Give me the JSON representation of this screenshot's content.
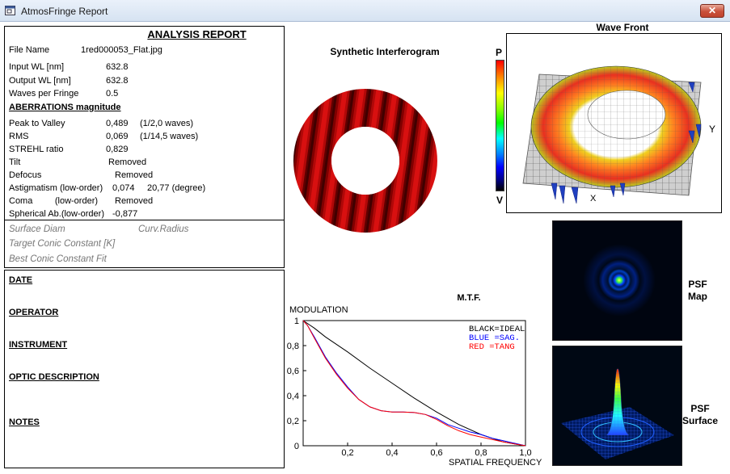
{
  "window": {
    "title": "AtmosFringe  Report",
    "close_glyph": "✕"
  },
  "report": {
    "heading": "ANALYSIS  REPORT",
    "file_name_label": "File Name",
    "file_name": "1red000053_Flat.jpg",
    "input_wl_label": "Input  WL [nm]",
    "input_wl": "632.8",
    "output_wl_label": "Output WL [nm]",
    "output_wl": "632.8",
    "waves_label": "Waves per Fringe",
    "waves": "0.5",
    "aberrations_heading": "ABERRATIONS magnitude",
    "ptv_label": "Peak to Valley",
    "ptv": "0,489",
    "ptv_waves": "(1/2,0 waves)",
    "rms_label": "RMS",
    "rms": "0,069",
    "rms_waves": "(1/14,5 waves)",
    "strehl_label": "STREHL ratio",
    "strehl": "0,829",
    "tilt_label": "Tilt",
    "tilt": "Removed",
    "defocus_label": "Defocus",
    "defocus": "Removed",
    "astig_label": "Astigmatism  (low-order)",
    "astig": "0,074",
    "astig_deg": "20,77  (degree)",
    "coma_label": "Coma         (low-order)",
    "coma": "Removed",
    "spherical_label": "Spherical Ab.(low-order)",
    "spherical": "-0,877",
    "surface_diam_label": "Surface Diam",
    "curv_radius_label": "Curv.Radius",
    "target_conic_label": "Target Conic Constant [K]",
    "best_conic_label": "Best Conic Constant Fit"
  },
  "info": {
    "date": "DATE",
    "operator": "OPERATOR",
    "instrument": "INSTRUMENT",
    "optic_description": "OPTIC DESCRIPTION",
    "notes": "NOTES"
  },
  "interferogram": {
    "title": "Synthetic Interferogram"
  },
  "scale": {
    "top": "P",
    "bottom": "V"
  },
  "wavefront": {
    "title": "Wave Front",
    "y_axis": "Y",
    "x_axis": "X"
  },
  "psf": {
    "map_label_1": "PSF",
    "map_label_2": "Map",
    "surface_label_1": "PSF",
    "surface_label_2": "Surface"
  },
  "chart_data": {
    "type": "line",
    "title": "M.T.F.",
    "ylabel": "MODULATION",
    "xlabel": "SPATIAL FREQUENCY",
    "xlim": [
      0,
      1
    ],
    "ylim": [
      0,
      1
    ],
    "x_ticks": [
      "0,2",
      "0,4",
      "0,6",
      "0,8",
      "1,0"
    ],
    "y_ticks": [
      "0",
      "0,2",
      "0,4",
      "0,6",
      "0,8",
      "1"
    ],
    "legend": [
      "BLACK=IDEAL",
      "BLUE  =SAG.",
      "RED   =TANG"
    ],
    "legend_colors": [
      "#000000",
      "#0000ff",
      "#ff0000"
    ],
    "series": [
      {
        "name": "IDEAL",
        "color": "#000000",
        "x": [
          0,
          0.05,
          0.1,
          0.2,
          0.3,
          0.4,
          0.5,
          0.6,
          0.7,
          0.8,
          0.9,
          1.0
        ],
        "y": [
          1.0,
          0.94,
          0.87,
          0.75,
          0.62,
          0.5,
          0.38,
          0.27,
          0.17,
          0.09,
          0.03,
          0.0
        ]
      },
      {
        "name": "SAG.",
        "color": "#0000ff",
        "x": [
          0,
          0.02,
          0.05,
          0.1,
          0.15,
          0.2,
          0.25,
          0.3,
          0.35,
          0.4,
          0.45,
          0.5,
          0.55,
          0.6,
          0.65,
          0.7,
          0.75,
          0.8,
          0.85,
          0.9,
          0.95,
          1.0
        ],
        "y": [
          1.0,
          0.96,
          0.87,
          0.71,
          0.58,
          0.47,
          0.37,
          0.31,
          0.28,
          0.27,
          0.27,
          0.265,
          0.25,
          0.22,
          0.17,
          0.14,
          0.11,
          0.09,
          0.06,
          0.04,
          0.02,
          0.0
        ]
      },
      {
        "name": "TANG",
        "color": "#ff0000",
        "x": [
          0,
          0.02,
          0.05,
          0.1,
          0.15,
          0.2,
          0.25,
          0.3,
          0.35,
          0.4,
          0.45,
          0.5,
          0.55,
          0.6,
          0.65,
          0.7,
          0.75,
          0.8,
          0.85,
          0.9,
          0.95,
          1.0
        ],
        "y": [
          1.0,
          0.96,
          0.86,
          0.7,
          0.57,
          0.46,
          0.37,
          0.31,
          0.28,
          0.27,
          0.27,
          0.265,
          0.25,
          0.21,
          0.16,
          0.12,
          0.09,
          0.07,
          0.05,
          0.03,
          0.015,
          0.0
        ]
      }
    ]
  }
}
